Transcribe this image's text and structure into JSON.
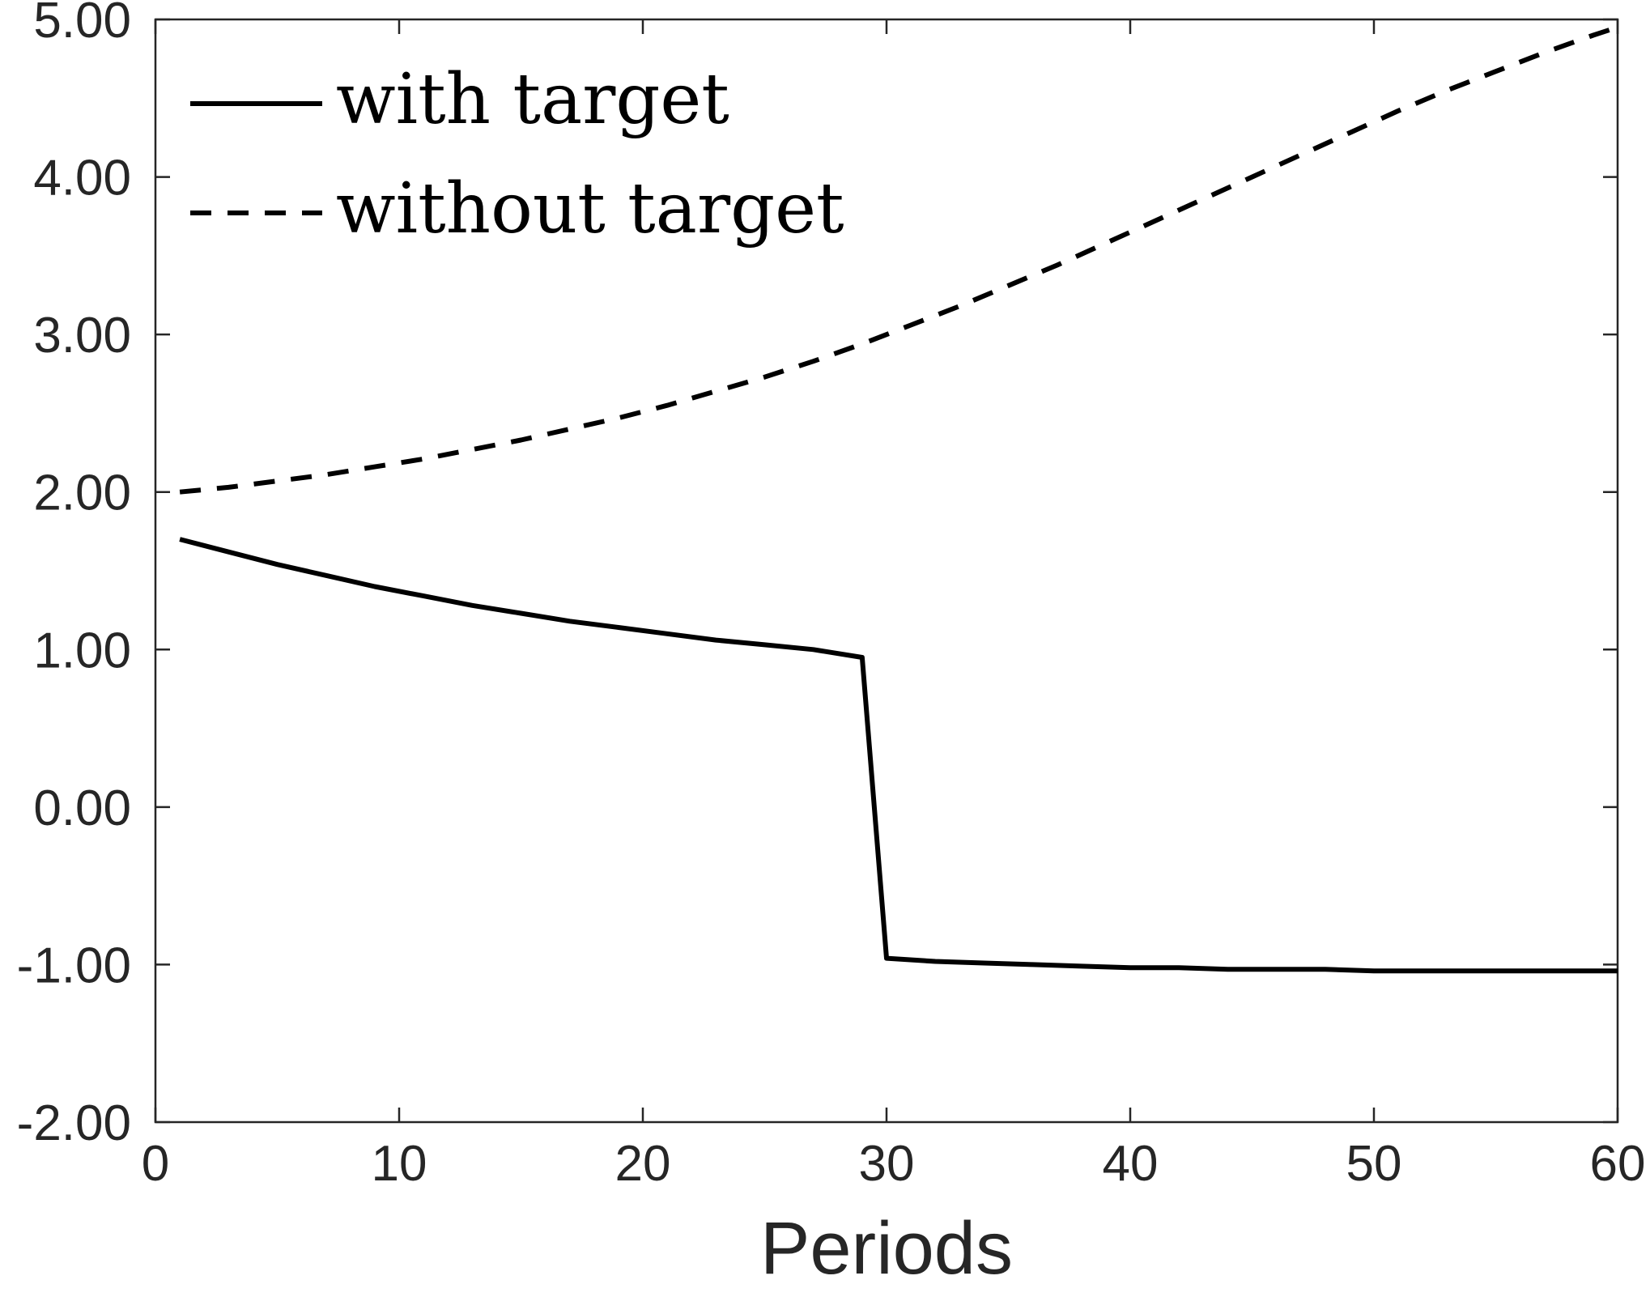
{
  "chart_data": {
    "type": "line",
    "title": "",
    "xlabel": "Periods",
    "ylabel": "",
    "xlim": [
      0,
      60
    ],
    "ylim": [
      -2,
      5
    ],
    "x_ticks": [
      0,
      10,
      20,
      30,
      40,
      50,
      60
    ],
    "x_tick_labels": [
      "0",
      "10",
      "20",
      "30",
      "40",
      "50",
      "60"
    ],
    "y_ticks": [
      5,
      4,
      3,
      2,
      1,
      0,
      -1,
      -2
    ],
    "y_tick_labels": [
      "5.00",
      "4.00",
      "3.00",
      "2.00",
      "1.00",
      "0.00",
      "-1.00",
      "-2.00"
    ],
    "grid": false,
    "legend_position": "top-left",
    "colors": {
      "line": "#000000",
      "axis": "#262626"
    },
    "series": [
      {
        "name": "with target",
        "style": "solid",
        "x": [
          1,
          3,
          5,
          7,
          9,
          11,
          13,
          15,
          17,
          19,
          21,
          23,
          25,
          27,
          29,
          30,
          32,
          34,
          36,
          38,
          40,
          42,
          44,
          46,
          48,
          50,
          52,
          54,
          56,
          58,
          60
        ],
        "y": [
          1.7,
          1.62,
          1.54,
          1.47,
          1.4,
          1.34,
          1.28,
          1.23,
          1.18,
          1.14,
          1.1,
          1.06,
          1.03,
          1.0,
          0.95,
          -0.96,
          -0.98,
          -0.99,
          -1.0,
          -1.01,
          -1.02,
          -1.02,
          -1.03,
          -1.03,
          -1.03,
          -1.04,
          -1.04,
          -1.04,
          -1.04,
          -1.04,
          -1.04
        ]
      },
      {
        "name": "without target",
        "style": "dashed",
        "x": [
          1,
          3,
          5,
          7,
          9,
          11,
          13,
          15,
          17,
          19,
          21,
          23,
          25,
          27,
          29,
          31,
          33,
          35,
          37,
          39,
          41,
          43,
          45,
          47,
          49,
          51,
          53,
          55,
          57,
          59,
          60
        ],
        "y": [
          2.0,
          2.03,
          2.07,
          2.11,
          2.16,
          2.21,
          2.27,
          2.33,
          2.4,
          2.47,
          2.55,
          2.64,
          2.73,
          2.83,
          2.94,
          3.06,
          3.18,
          3.31,
          3.44,
          3.58,
          3.72,
          3.86,
          4.0,
          4.14,
          4.28,
          4.42,
          4.55,
          4.67,
          4.79,
          4.9,
          4.95
        ]
      }
    ]
  }
}
